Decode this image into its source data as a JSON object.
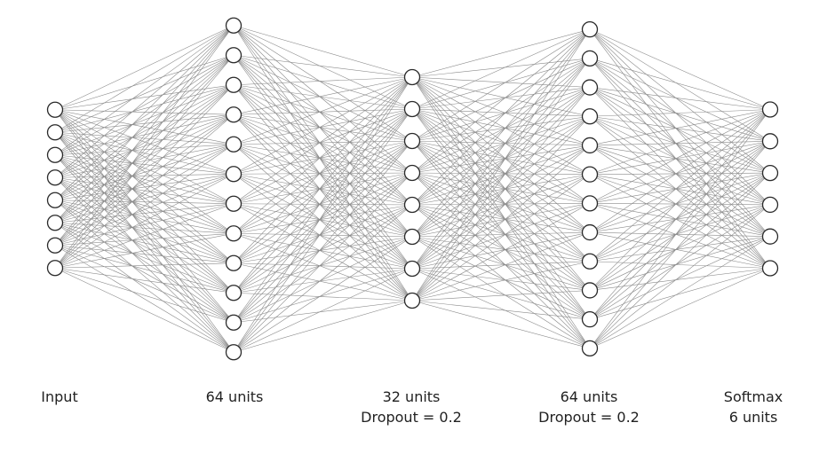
{
  "layers": [
    {
      "units": 8,
      "lines": [
        "Input"
      ]
    },
    {
      "units": 12,
      "lines": [
        "64 units"
      ]
    },
    {
      "units": 8,
      "lines": [
        "32 units",
        "Dropout = 0.2"
      ]
    },
    {
      "units": 12,
      "lines": [
        "64 units",
        "Dropout = 0.2"
      ]
    },
    {
      "units": 6,
      "lines": [
        "Softmax",
        "6 units"
      ]
    }
  ],
  "colors": {
    "node_stroke": "#2a2a2a",
    "node_fill": "#ffffff",
    "edge": "#8a8a8a",
    "label_text": "#222222"
  }
}
